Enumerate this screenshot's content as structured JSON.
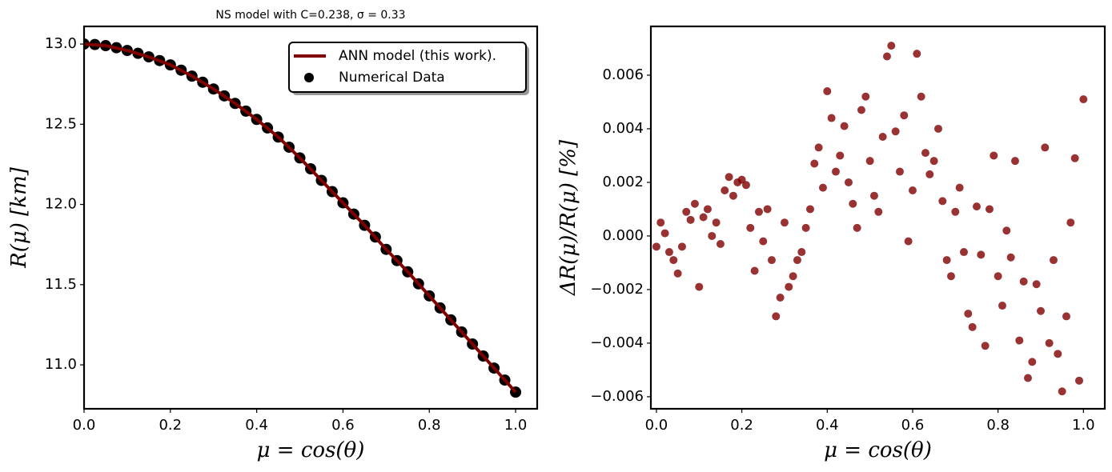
{
  "chart_data": [
    {
      "type": "line",
      "title": "NS model with C=0.238, σ = 0.33",
      "xlabel": "μ = cos(θ)",
      "ylabel": "R(μ) [km]",
      "xlim": [
        0,
        1.05
      ],
      "ylim": [
        10.726,
        13.11
      ],
      "xticks": [
        {
          "value": 0,
          "label": "0.0"
        },
        {
          "value": 0.2,
          "label": "0.2"
        },
        {
          "value": 0.4,
          "label": "0.4"
        },
        {
          "value": 0.6,
          "label": "0.6"
        },
        {
          "value": 0.8,
          "label": "0.8"
        },
        {
          "value": 1,
          "label": "1.0"
        }
      ],
      "yticks": [
        {
          "value": 11,
          "label": "11.0"
        },
        {
          "value": 11.5,
          "label": "11.5"
        },
        {
          "value": 12,
          "label": "12.0"
        },
        {
          "value": 12.5,
          "label": "12.5"
        },
        {
          "value": 13,
          "label": "13.0"
        }
      ],
      "legend": "upper right",
      "series": [
        {
          "name": "ANN model (this work).",
          "type": "line",
          "color": "#800000",
          "x": [
            0,
            0.05,
            0.1,
            0.15,
            0.2,
            0.25,
            0.3,
            0.35,
            0.4,
            0.45,
            0.5,
            0.55,
            0.6,
            0.65,
            0.7,
            0.75,
            0.8,
            0.85,
            0.9,
            0.95,
            1
          ],
          "values": [
            13.0,
            12.99,
            12.96,
            12.92,
            12.87,
            12.8,
            12.72,
            12.63,
            12.53,
            12.42,
            12.29,
            12.15,
            12.01,
            11.87,
            11.72,
            11.58,
            11.43,
            11.28,
            11.13,
            10.98,
            10.83
          ]
        },
        {
          "name": "Numerical Data",
          "type": "scatter",
          "color": "#000000",
          "x": [
            0,
            0.025,
            0.05,
            0.075,
            0.1,
            0.125,
            0.15,
            0.175,
            0.2,
            0.225,
            0.25,
            0.275,
            0.3,
            0.325,
            0.35,
            0.375,
            0.4,
            0.425,
            0.45,
            0.475,
            0.5,
            0.525,
            0.55,
            0.575,
            0.6,
            0.625,
            0.65,
            0.675,
            0.7,
            0.725,
            0.75,
            0.775,
            0.8,
            0.825,
            0.85,
            0.875,
            0.9,
            0.925,
            0.95,
            0.975,
            1
          ],
          "values": [
            13.0,
            12.997,
            12.99,
            12.977,
            12.96,
            12.942,
            12.92,
            12.897,
            12.87,
            12.837,
            12.8,
            12.762,
            12.72,
            12.677,
            12.63,
            12.582,
            12.53,
            12.477,
            12.42,
            12.357,
            12.29,
            12.222,
            12.15,
            12.08,
            12.01,
            11.94,
            11.87,
            11.797,
            11.72,
            11.65,
            11.58,
            11.505,
            11.43,
            11.355,
            11.28,
            11.205,
            11.13,
            11.055,
            10.98,
            10.905,
            10.83
          ]
        }
      ]
    },
    {
      "type": "scatter",
      "xlabel": "μ = cos(θ)",
      "ylabel": "ΔR(μ)/R(μ) [%]",
      "color": "#800000",
      "xlim": [
        -0.013,
        1.05
      ],
      "ylim": [
        -0.00645,
        0.00782
      ],
      "xticks": [
        {
          "value": 0,
          "label": "0.0"
        },
        {
          "value": 0.2,
          "label": "0.2"
        },
        {
          "value": 0.4,
          "label": "0.4"
        },
        {
          "value": 0.6,
          "label": "0.6"
        },
        {
          "value": 0.8,
          "label": "0.8"
        },
        {
          "value": 1,
          "label": "1.0"
        }
      ],
      "yticks": [
        {
          "value": -0.006,
          "label": "−0.006"
        },
        {
          "value": -0.004,
          "label": "−0.004"
        },
        {
          "value": -0.002,
          "label": "−0.002"
        },
        {
          "value": 0,
          "label": "0.000"
        },
        {
          "value": 0.002,
          "label": "0.002"
        },
        {
          "value": 0.004,
          "label": "0.004"
        },
        {
          "value": 0.006,
          "label": "0.006"
        }
      ],
      "x": [
        0,
        0.01,
        0.02,
        0.03,
        0.04,
        0.05,
        0.06,
        0.07,
        0.08,
        0.09,
        0.1,
        0.11,
        0.12,
        0.13,
        0.14,
        0.15,
        0.16,
        0.17,
        0.18,
        0.19,
        0.2,
        0.21,
        0.22,
        0.23,
        0.24,
        0.25,
        0.26,
        0.27,
        0.28,
        0.29,
        0.3,
        0.31,
        0.32,
        0.33,
        0.34,
        0.35,
        0.36,
        0.37,
        0.38,
        0.39,
        0.4,
        0.41,
        0.42,
        0.43,
        0.44,
        0.45,
        0.46,
        0.47,
        0.48,
        0.49,
        0.5,
        0.51,
        0.52,
        0.53,
        0.54,
        0.55,
        0.56,
        0.57,
        0.58,
        0.59,
        0.6,
        0.61,
        0.62,
        0.63,
        0.64,
        0.65,
        0.66,
        0.67,
        0.68,
        0.69,
        0.7,
        0.71,
        0.72,
        0.73,
        0.74,
        0.75,
        0.76,
        0.77,
        0.78,
        0.79,
        0.8,
        0.81,
        0.82,
        0.83,
        0.84,
        0.85,
        0.86,
        0.87,
        0.88,
        0.89,
        0.9,
        0.91,
        0.92,
        0.93,
        0.94,
        0.95,
        0.96,
        0.97,
        0.98,
        0.99,
        1
      ],
      "values": [
        -0.0004,
        0.0005,
        0.0001,
        -0.0006,
        -0.0009,
        -0.0014,
        -0.0004,
        0.0009,
        0.0006,
        0.0012,
        -0.0019,
        0.0007,
        0.001,
        0,
        0.0005,
        -0.0003,
        0.0017,
        0.0022,
        0.0015,
        0.002,
        0.0021,
        0.0019,
        0.0003,
        -0.0013,
        0.0009,
        -0.0002,
        0.001,
        -0.0009,
        -0.003,
        -0.0023,
        0.0005,
        -0.0019,
        -0.0015,
        -0.0009,
        -0.0006,
        0.0003,
        0.001,
        0.0027,
        0.0033,
        0.0018,
        0.0054,
        0.0044,
        0.0024,
        0.003,
        0.0041,
        0.002,
        0.0012,
        0.0003,
        0.0047,
        0.0052,
        0.0028,
        0.0015,
        0.0009,
        0.0037,
        0.0067,
        0.0071,
        0.0039,
        0.0024,
        0.0045,
        -0.0002,
        0.0017,
        0.0068,
        0.0052,
        0.0031,
        0.0023,
        0.0028,
        0.004,
        0.0013,
        -0.0009,
        -0.0015,
        0.0009,
        0.0018,
        -0.0006,
        -0.0029,
        -0.0034,
        0.0011,
        -0.0007,
        -0.0041,
        0.001,
        0.003,
        -0.0015,
        -0.0026,
        0.0002,
        -0.0008,
        0.0028,
        -0.0039,
        -0.0017,
        -0.0053,
        -0.0047,
        -0.0018,
        -0.0028,
        0.0033,
        -0.004,
        -0.0009,
        -0.0044,
        -0.0058,
        -0.003,
        0.0005,
        0.0029,
        -0.0054,
        0.0051
      ]
    }
  ]
}
